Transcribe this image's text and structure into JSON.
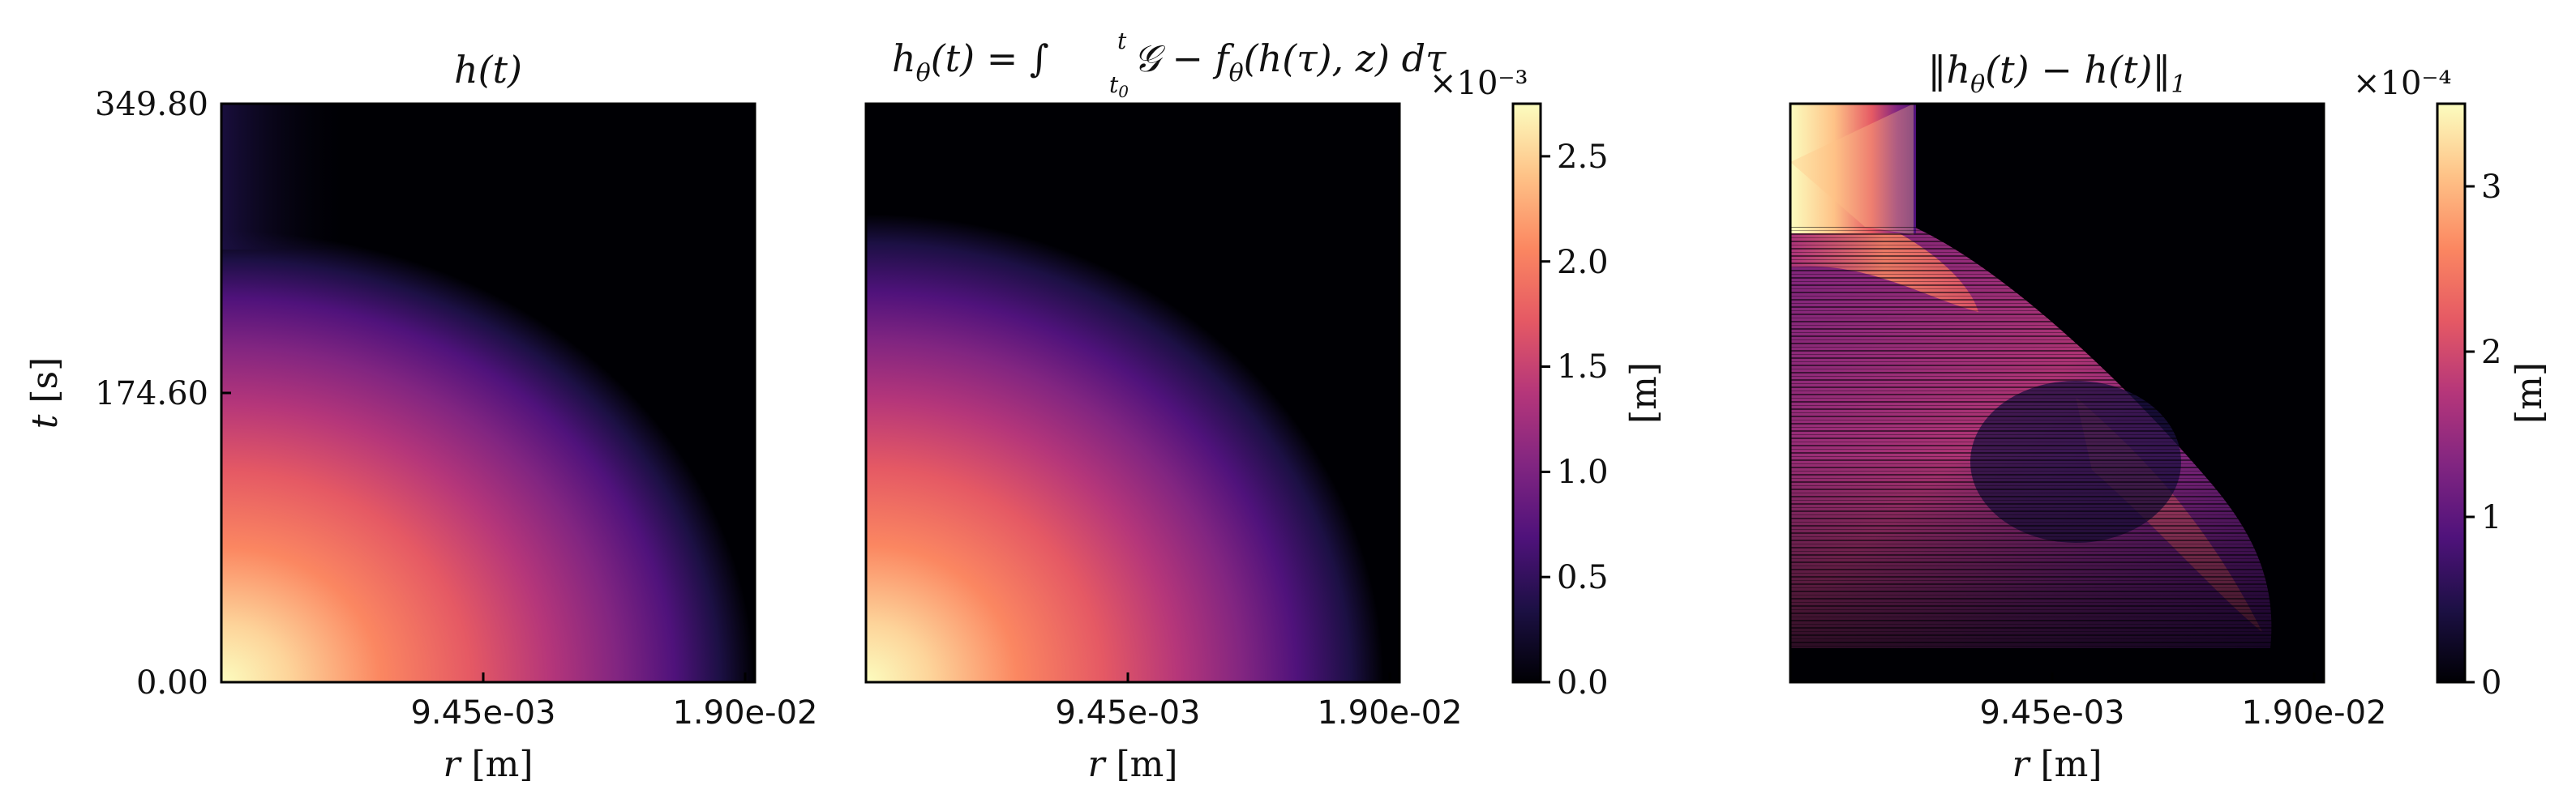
{
  "chart_data": [
    {
      "type": "heatmap",
      "title": "h(t)",
      "xlabel": "r [m]",
      "ylabel": "t [s]",
      "xticks": [
        "9.45e-03",
        "1.90e-02"
      ],
      "yticks": [
        "0.00",
        "174.60",
        "349.80"
      ],
      "xlim": [
        0,
        0.019
      ],
      "ylim": [
        0,
        349.8
      ],
      "colorbar_range": [
        0,
        0.00275
      ],
      "description_of_field": "maximum near r=0,t=0, decaying radially; front recedes with time"
    },
    {
      "type": "heatmap",
      "title": "h_θ(t) = ∫_{t0}^{t} 𝒢 − f_θ(h(τ), z) dτ",
      "xlabel": "r [m]",
      "xticks": [
        "9.45e-03",
        "1.90e-02"
      ],
      "xlim": [
        0,
        0.019
      ],
      "ylim": [
        0,
        349.8
      ],
      "colorbar": {
        "label": "[m]",
        "multiplier": "×10⁻³",
        "ticks": [
          "0.0",
          "0.5",
          "1.0",
          "1.5",
          "2.0",
          "2.5"
        ],
        "range": [
          0,
          2.75
        ]
      }
    },
    {
      "type": "heatmap",
      "title": "‖h_θ(t) − h(t)‖₁",
      "xlabel": "r [m]",
      "xticks": [
        "9.45e-03",
        "1.90e-02"
      ],
      "xlim": [
        0,
        0.019
      ],
      "ylim": [
        0,
        349.8
      ],
      "colorbar": {
        "label": "[m]",
        "multiplier": "×10⁻⁴",
        "ticks": [
          "0",
          "1",
          "2",
          "3"
        ],
        "range": [
          0,
          3.5
        ]
      }
    }
  ],
  "panels": {
    "p1": {
      "title": "h(t)",
      "xlabel_var": "r",
      "xlabel_unit": "[m]",
      "ylabel_var": "t",
      "ylabel_unit": "[s]",
      "xticks": [
        "9.45e-03",
        "1.90e-02"
      ],
      "yticks": [
        "0.00",
        "174.60",
        "349.80"
      ]
    },
    "p2": {
      "title_lhs": "h",
      "title_sub": "θ",
      "title_mid": "(t) = ∫",
      "title_lower": "t",
      "title_lower_sub": "0",
      "title_upper": "t",
      "title_integrand": "𝒢 − f",
      "title_integrand_sub": "θ",
      "title_rest": "(h(τ), z) dτ",
      "xlabel_var": "r",
      "xlabel_unit": "[m]",
      "xticks": [
        "9.45e-03",
        "1.90e-02"
      ]
    },
    "p3": {
      "title_open": "‖h",
      "title_sub": "θ",
      "title_rest": "(t) − h(t)‖",
      "title_norm_sub": "1",
      "xlabel_var": "r",
      "xlabel_unit": "[m]",
      "xticks": [
        "9.45e-03",
        "1.90e-02"
      ]
    },
    "cb1": {
      "multiplier": "×10⁻³",
      "label": "[m]",
      "ticks": [
        "0.0",
        "0.5",
        "1.0",
        "1.5",
        "2.0",
        "2.5"
      ]
    },
    "cb2": {
      "multiplier": "×10⁻⁴",
      "label": "[m]",
      "ticks": [
        "0",
        "1",
        "2",
        "3"
      ]
    }
  },
  "colors": {
    "magma": [
      "#000004",
      "#1c1044",
      "#4f127b",
      "#812581",
      "#b5367a",
      "#e55964",
      "#fb8761",
      "#fec287",
      "#fcfdbf"
    ]
  }
}
